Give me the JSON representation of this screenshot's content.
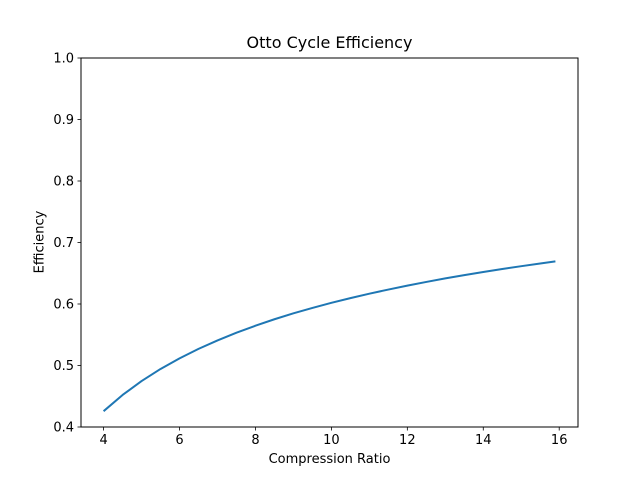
{
  "figure": {
    "title": "Otto Cycle Efficiency",
    "xlabel": "Compression Ratio",
    "ylabel": "Efficiency"
  },
  "chart_data": {
    "type": "line",
    "title": "Otto Cycle Efficiency",
    "xlabel": "Compression Ratio",
    "ylabel": "Efficiency",
    "xlim": [
      3.405,
      16.495
    ],
    "ylim": [
      0.4,
      1.0
    ],
    "xticks": [
      4,
      6,
      8,
      10,
      12,
      14,
      16
    ],
    "yticks": [
      0.4,
      0.5,
      0.6,
      0.7,
      0.8,
      0.9,
      1.0
    ],
    "grid": false,
    "legend_position": "none",
    "background_color": "#ffffff",
    "spine_color": "#000000",
    "series": [
      {
        "name": "efficiency",
        "color": "#1f77b4",
        "line_width": 2,
        "x": [
          4.0,
          4.5,
          5.0,
          5.5,
          6.0,
          6.5,
          7.0,
          7.5,
          8.0,
          8.5,
          9.0,
          9.5,
          10.0,
          10.5,
          11.0,
          11.5,
          12.0,
          12.5,
          13.0,
          13.5,
          14.0,
          14.5,
          15.0,
          15.5,
          15.9
        ],
        "y": [
          0.4257,
          0.4521,
          0.4747,
          0.4944,
          0.5116,
          0.527,
          0.5408,
          0.5533,
          0.5647,
          0.5752,
          0.5848,
          0.5936,
          0.6019,
          0.6096,
          0.6168,
          0.6235,
          0.6299,
          0.6359,
          0.6416,
          0.6469,
          0.652,
          0.6569,
          0.6615,
          0.6659,
          0.6693
        ]
      }
    ]
  }
}
